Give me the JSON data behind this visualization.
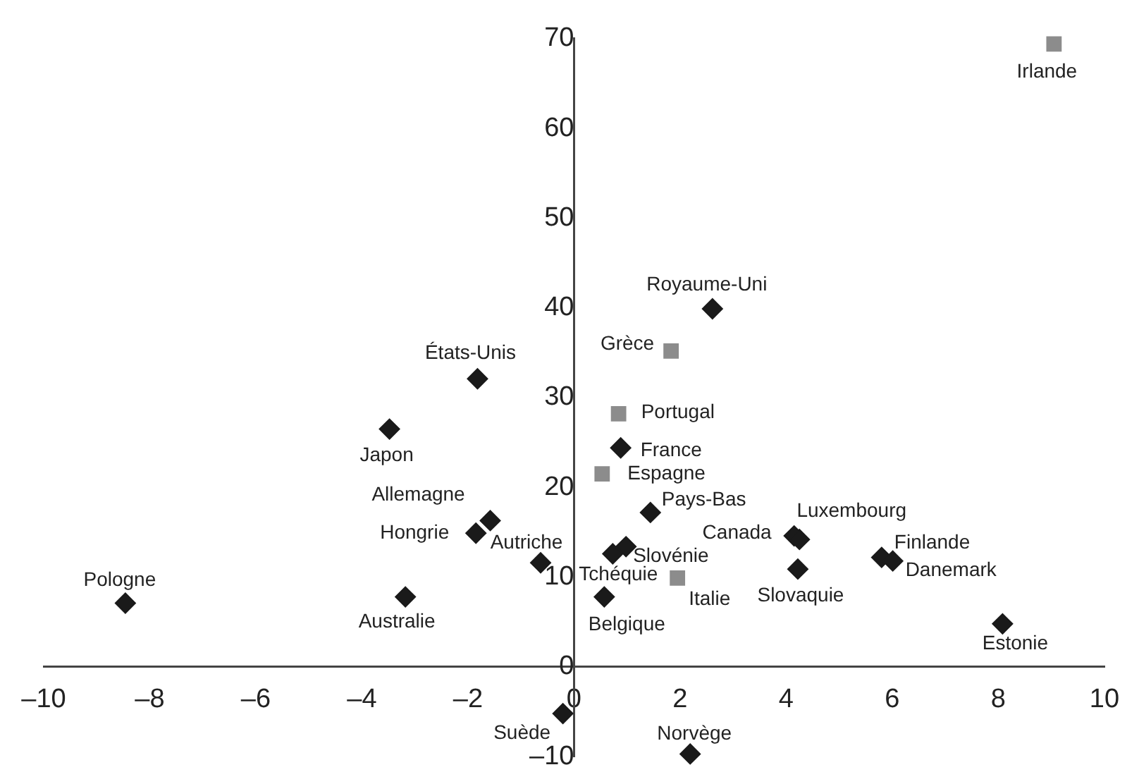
{
  "chart_data": {
    "type": "scatter",
    "xlim": [
      -10,
      10
    ],
    "xticks": [
      {
        "value": -10,
        "label": "–10"
      },
      {
        "value": -8,
        "label": "–8"
      },
      {
        "value": -6,
        "label": "–6"
      },
      {
        "value": -4,
        "label": "–4"
      },
      {
        "value": -2,
        "label": "–2"
      },
      0,
      2,
      4,
      6,
      8,
      10
    ],
    "ylim": [
      -10,
      70
    ],
    "yticks": [
      {
        "value": -10,
        "label": "–10"
      },
      0,
      10,
      20,
      30,
      40,
      50,
      60,
      70
    ],
    "grid": false,
    "legend": false,
    "series": [
      {
        "color": "#1a1a1a",
        "marker": "diamond",
        "x": [
          2.61,
          0.88,
          1.44,
          0.98,
          0.73,
          0.57,
          4.15,
          4.25,
          4.22,
          5.8,
          6.01,
          8.08,
          -8.46,
          -3.18,
          -3.48,
          -1.82,
          -1.58,
          -1.85,
          -0.63,
          -0.21,
          2.19
        ],
        "values": [
          39.9,
          24.4,
          17.2,
          13.4,
          12.6,
          7.8,
          14.6,
          14.2,
          10.9,
          12.2,
          11.8,
          4.8,
          7.1,
          7.8,
          26.5,
          32.1,
          16.3,
          14.9,
          11.6,
          -5.2,
          -9.7
        ]
      },
      {
        "color": "#8c8c8c",
        "marker": "square",
        "x": [
          9.05,
          1.83,
          0.84,
          0.53,
          1.95
        ],
        "values": [
          69.4,
          35.2,
          28.2,
          21.5,
          9.9
        ]
      }
    ],
    "annotations": [
      {
        "text": "Irlande",
        "x": 9.05,
        "y": 69.4
      },
      {
        "text": "Royaume-Uni",
        "x": 2.61,
        "y": 39.9
      },
      {
        "text": "Grèce",
        "x": 1.83,
        "y": 35.2
      },
      {
        "text": "Portugal",
        "x": 0.84,
        "y": 28.2
      },
      {
        "text": "France",
        "x": 0.88,
        "y": 24.4
      },
      {
        "text": "Espagne",
        "x": 0.53,
        "y": 21.5
      },
      {
        "text": "Pays-Bas",
        "x": 1.44,
        "y": 17.2
      },
      {
        "text": "Slovénie",
        "x": 0.98,
        "y": 13.4
      },
      {
        "text": "Tchéquie",
        "x": 0.73,
        "y": 12.6
      },
      {
        "text": "Italie",
        "x": 1.95,
        "y": 9.9
      },
      {
        "text": "Belgique",
        "x": 0.57,
        "y": 7.8
      },
      {
        "text": "Canada",
        "x": 4.15,
        "y": 14.6
      },
      {
        "text": "Luxembourg",
        "x": 4.25,
        "y": 14.2
      },
      {
        "text": "Slovaquie",
        "x": 4.22,
        "y": 10.9
      },
      {
        "text": "Finlande",
        "x": 5.8,
        "y": 12.2
      },
      {
        "text": "Danemark",
        "x": 6.01,
        "y": 11.8
      },
      {
        "text": "Estonie",
        "x": 8.08,
        "y": 4.8
      },
      {
        "text": "Pologne",
        "x": -8.46,
        "y": 7.1
      },
      {
        "text": "Australie",
        "x": -3.18,
        "y": 7.8
      },
      {
        "text": "Japon",
        "x": -3.48,
        "y": 26.5
      },
      {
        "text": "États-Unis",
        "x": -1.82,
        "y": 32.1
      },
      {
        "text": "Allemagne",
        "x": -1.58,
        "y": 16.3
      },
      {
        "text": "Hongrie",
        "x": -1.85,
        "y": 14.9
      },
      {
        "text": "Autriche",
        "x": -0.63,
        "y": 11.6
      },
      {
        "text": "Suède",
        "x": -0.21,
        "y": -5.2
      },
      {
        "text": "Norvège",
        "x": 2.19,
        "y": -9.7
      }
    ]
  }
}
